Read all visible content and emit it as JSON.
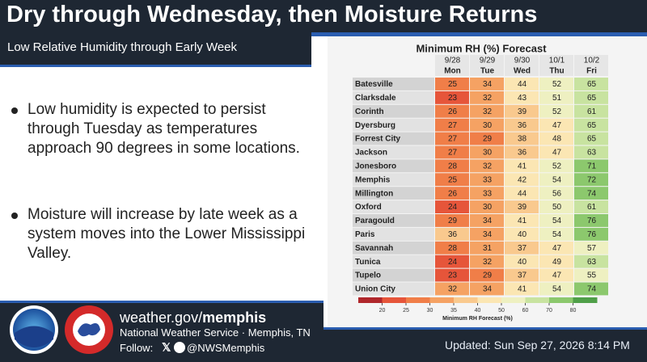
{
  "header": {
    "title": "Dry through Wednesday, then Moisture Returns",
    "subtitle": "Low Relative Humidity through Early Week"
  },
  "bullets": [
    "Low humidity is expected to persist through Tuesday as temperatures approach 90 degrees in some locations.",
    "Moisture will increase by late week as a system moves into the Lower Mississippi Valley."
  ],
  "table": {
    "title": "Minimum RH (%) Forecast",
    "dates": [
      "9/28",
      "9/29",
      "9/30",
      "10/1",
      "10/2"
    ],
    "days": [
      "Mon",
      "Tue",
      "Wed",
      "Thu",
      "Fri"
    ],
    "rows": [
      [
        "Batesville",
        25,
        34,
        44,
        52,
        65
      ],
      [
        "Clarksdale",
        23,
        32,
        43,
        51,
        65
      ],
      [
        "Corinth",
        26,
        32,
        39,
        52,
        61
      ],
      [
        "Dyersburg",
        27,
        30,
        36,
        47,
        65
      ],
      [
        "Forrest City",
        27,
        29,
        38,
        48,
        65
      ],
      [
        "Jackson",
        27,
        30,
        36,
        47,
        63
      ],
      [
        "Jonesboro",
        28,
        32,
        41,
        52,
        71
      ],
      [
        "Memphis",
        25,
        33,
        42,
        54,
        72
      ],
      [
        "Millington",
        26,
        33,
        44,
        56,
        74
      ],
      [
        "Oxford",
        24,
        30,
        39,
        50,
        61
      ],
      [
        "Paragould",
        29,
        34,
        41,
        54,
        76
      ],
      [
        "Paris",
        36,
        34,
        40,
        54,
        76
      ],
      [
        "Savannah",
        28,
        31,
        37,
        47,
        57
      ],
      [
        "Tunica",
        24,
        32,
        40,
        49,
        63
      ],
      [
        "Tupelo",
        23,
        29,
        37,
        47,
        55
      ],
      [
        "Union City",
        32,
        34,
        41,
        54,
        74
      ]
    ],
    "colorbar": {
      "label": "Minimum RH Forecast (%)",
      "ticks": [
        20,
        25,
        30,
        35,
        40,
        50,
        60,
        70,
        80
      ],
      "colors": [
        "#b0272b",
        "#e6553a",
        "#f07e48",
        "#f5a263",
        "#f9c98e",
        "#fbe6b3",
        "#eef0c1",
        "#c8e3a0",
        "#8cc86d",
        "#4f9f48"
      ]
    }
  },
  "footer": {
    "site_prefix": "weather.gov/",
    "site_office": "memphis",
    "agency": "National Weather Service · Memphis, TN",
    "follow": "Follow:",
    "handle": "@NWSMemphis",
    "updated": "Updated: Sun Sep 27, 2026 8:14 PM"
  }
}
